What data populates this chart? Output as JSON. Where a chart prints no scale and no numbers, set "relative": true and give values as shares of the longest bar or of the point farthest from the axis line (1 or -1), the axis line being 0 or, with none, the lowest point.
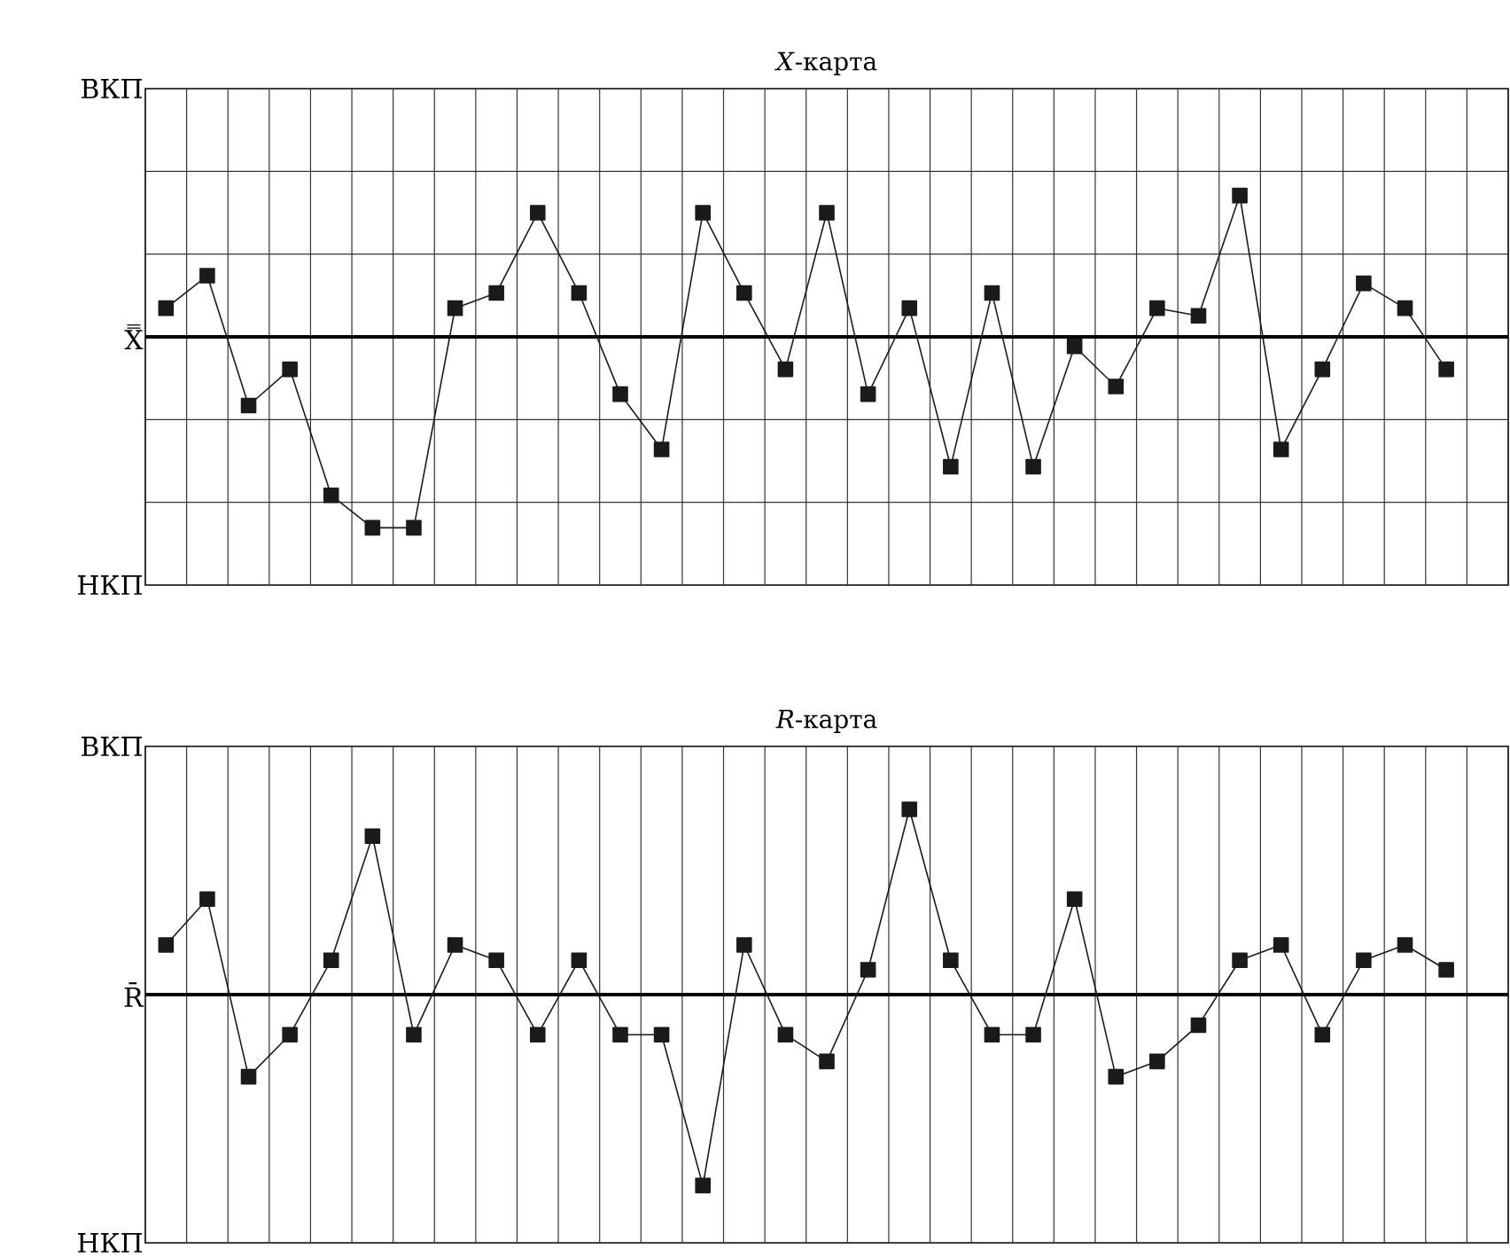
{
  "chart_data": [
    {
      "type": "line",
      "title": "*X*-карта",
      "relative": true,
      "grid": true,
      "categories": [
        null,
        null,
        null,
        null,
        null,
        null,
        null,
        null,
        null,
        null,
        null,
        null,
        null,
        null,
        null,
        null,
        null,
        null,
        null,
        null,
        null,
        null,
        null,
        null,
        null,
        null,
        null,
        null,
        null,
        null,
        null,
        null
      ],
      "annotations": [
        "ВКП",
        "X̿",
        "НКП"
      ],
      "series": [
        {
          "marker": "square",
          "color": "#1a1a1a",
          "values": [
            0.15,
            0.32,
            -0.36,
            -0.17,
            -0.83,
            -1,
            -1,
            0.15,
            0.23,
            0.65,
            0.23,
            -0.3,
            -0.59,
            0.65,
            0.23,
            -0.17,
            0.65,
            -0.3,
            0.15,
            -0.68,
            0.23,
            -0.68,
            -0.05,
            -0.26,
            0.15,
            0.11,
            0.74,
            -0.59,
            -0.17,
            0.28,
            0.15,
            -0.17
          ]
        }
      ]
    },
    {
      "type": "line",
      "title": "*R*-карта",
      "relative": true,
      "grid": "x",
      "categories": [
        null,
        null,
        null,
        null,
        null,
        null,
        null,
        null,
        null,
        null,
        null,
        null,
        null,
        null,
        null,
        null,
        null,
        null,
        null,
        null,
        null,
        null,
        null,
        null,
        null,
        null,
        null,
        null,
        null,
        null,
        null,
        null
      ],
      "annotations": [
        "ВКП",
        "R̄",
        "НКП"
      ],
      "series": [
        {
          "marker": "square",
          "color": "#1a1a1a",
          "values": [
            0.26,
            0.5,
            -0.43,
            -0.21,
            0.18,
            0.83,
            -0.21,
            0.26,
            0.18,
            -0.21,
            0.18,
            -0.21,
            -0.21,
            -1,
            0.26,
            -0.21,
            -0.35,
            0.13,
            0.97,
            0.18,
            -0.21,
            -0.21,
            0.5,
            -0.43,
            -0.35,
            -0.16,
            0.18,
            0.26,
            -0.21,
            0.18,
            0.26,
            0.13
          ]
        }
      ]
    }
  ]
}
